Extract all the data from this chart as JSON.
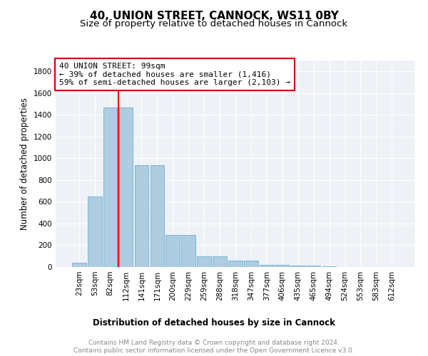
{
  "title": "40, UNION STREET, CANNOCK, WS11 0BY",
  "subtitle": "Size of property relative to detached houses in Cannock",
  "xlabel": "Distribution of detached houses by size in Cannock",
  "ylabel": "Number of detached properties",
  "categories": [
    "23sqm",
    "53sqm",
    "82sqm",
    "112sqm",
    "141sqm",
    "171sqm",
    "200sqm",
    "229sqm",
    "259sqm",
    "288sqm",
    "318sqm",
    "347sqm",
    "377sqm",
    "406sqm",
    "435sqm",
    "465sqm",
    "494sqm",
    "524sqm",
    "553sqm",
    "583sqm",
    "612sqm"
  ],
  "values": [
    40,
    650,
    1470,
    1470,
    940,
    940,
    295,
    295,
    100,
    100,
    60,
    60,
    20,
    20,
    15,
    15,
    5,
    0,
    0,
    0,
    0
  ],
  "bar_color": "#aecde0",
  "bar_edge_color": "#6aadd5",
  "red_line_x": 2.5,
  "annotation_text": "40 UNION STREET: 99sqm\n← 39% of detached houses are smaller (1,416)\n59% of semi-detached houses are larger (2,103) →",
  "annotation_box_color": "white",
  "annotation_box_edgecolor": "#cc0000",
  "ylim": [
    0,
    1900
  ],
  "yticks": [
    0,
    200,
    400,
    600,
    800,
    1000,
    1200,
    1400,
    1600,
    1800
  ],
  "footer_text": "Contains HM Land Registry data © Crown copyright and database right 2024.\nContains public sector information licensed under the Open Government Licence v3.0.",
  "background_color": "#eef2f7",
  "title_fontsize": 11,
  "subtitle_fontsize": 9.5,
  "axis_label_fontsize": 8.5,
  "tick_fontsize": 7.5,
  "annotation_fontsize": 8,
  "footer_fontsize": 6.5
}
